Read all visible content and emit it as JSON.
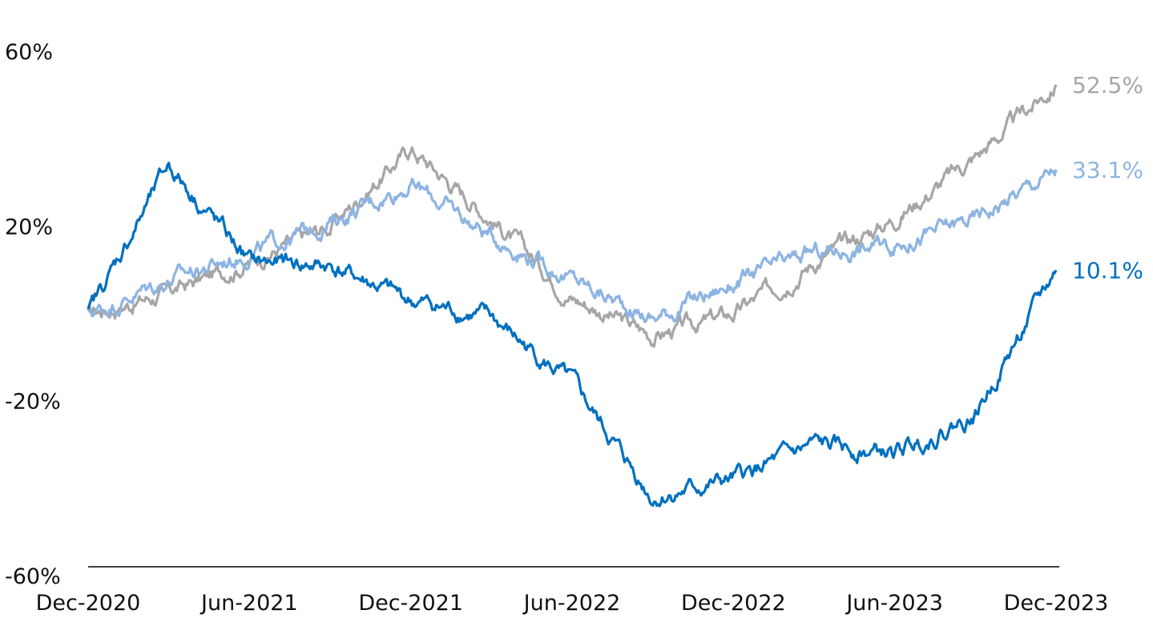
{
  "chart_data": {
    "type": "line",
    "title": "",
    "xlabel": "",
    "ylabel": "",
    "ylim": [
      -60,
      60
    ],
    "y_ticks": [
      "60%",
      "20%",
      "-20%",
      "-60%"
    ],
    "y_tick_values": [
      60,
      20,
      -20,
      -60
    ],
    "x_ticks": [
      "Dec-2020",
      "Jun-2021",
      "Dec-2021",
      "Jun-2022",
      "Dec-2022",
      "Jun-2023",
      "Dec-2023"
    ],
    "x": [
      "Dec-2020",
      "Mar-2021",
      "Jun-2021",
      "Sep-2021",
      "Dec-2021",
      "Mar-2022",
      "Jun-2022",
      "Sep-2022",
      "Dec-2022",
      "Mar-2023",
      "Jun-2023",
      "Sep-2023",
      "Dec-2023"
    ],
    "grid": false,
    "legend": "none",
    "series": [
      {
        "color": "#a6a6a6",
        "end_label": "52.5%",
        "values": [
          0,
          5,
          12,
          20,
          38,
          22,
          4,
          -5,
          0,
          12,
          22,
          36,
          52.5
        ]
      },
      {
        "color": "#8db4e2",
        "end_label": "33.1%",
        "values": [
          0,
          8,
          14,
          21,
          30,
          18,
          8,
          -1,
          7,
          14,
          16,
          22,
          33.1
        ]
      },
      {
        "color": "#0070c0",
        "end_label": "10.1%",
        "values": [
          0,
          34,
          12,
          11,
          3,
          -1,
          -16,
          -42,
          -38,
          -30,
          -32,
          -23,
          10.1
        ]
      }
    ]
  }
}
